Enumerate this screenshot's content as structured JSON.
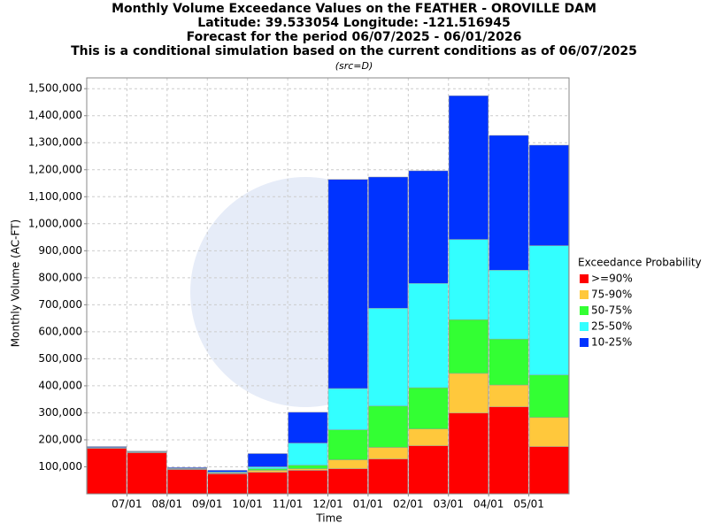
{
  "chart_data": {
    "type": "stacked_bar",
    "title": [
      "Monthly Volume Exceedance Values on the FEATHER - OROVILLE DAM",
      "Latitude: 39.533054 Longitude: -121.516945",
      "Forecast for the period 06/07/2025 - 06/01/2026",
      "This is a conditional simulation based on the current conditions as of 06/07/2025"
    ],
    "subtitle": "(src=D)",
    "xlabel": "Time",
    "ylabel": "Monthly Volume (AC-FT)",
    "xticks": [
      "07/01",
      "08/01",
      "09/01",
      "10/01",
      "11/01",
      "12/01",
      "01/01",
      "02/01",
      "03/01",
      "04/01",
      "05/01"
    ],
    "ylim": [
      0,
      1540000
    ],
    "yticks": [
      {
        "value": 100000,
        "label": "100,000"
      },
      {
        "value": 200000,
        "label": "200,000"
      },
      {
        "value": 300000,
        "label": "300,000"
      },
      {
        "value": 400000,
        "label": "400,000"
      },
      {
        "value": 500000,
        "label": "500,000"
      },
      {
        "value": 600000,
        "label": "600,000"
      },
      {
        "value": 700000,
        "label": "700,000"
      },
      {
        "value": 800000,
        "label": "800,000"
      },
      {
        "value": 900000,
        "label": "900,000"
      },
      {
        "value": 1000000,
        "label": "1,000,000"
      },
      {
        "value": 1100000,
        "label": "1,100,000"
      },
      {
        "value": 1200000,
        "label": "1,200,000"
      },
      {
        "value": 1300000,
        "label": "1,300,000"
      },
      {
        "value": 1400000,
        "label": "1,400,000"
      },
      {
        "value": 1500000,
        "label": "1,500,000"
      }
    ],
    "grid": true,
    "legend_title": "Exceedance Probability",
    "legend_position": "right",
    "series": [
      {
        "name": ">=90%",
        "color": "#ff0000",
        "values": [
          168000,
          152000,
          90000,
          74000,
          80000,
          87000,
          93000,
          129000,
          178000,
          299000,
          322000,
          175000
        ]
      },
      {
        "name": "75-90%",
        "color": "#ffc83c",
        "values": [
          1000,
          1000,
          1000,
          2000,
          7000,
          6000,
          33000,
          43000,
          62000,
          147000,
          81000,
          108000
        ]
      },
      {
        "name": "50-75%",
        "color": "#33ff33",
        "values": [
          1000,
          1000,
          1000,
          2000,
          6000,
          13000,
          111000,
          153000,
          153000,
          199000,
          170000,
          157000
        ]
      },
      {
        "name": "25-50%",
        "color": "#33ffff",
        "values": [
          2000,
          2000,
          2000,
          3000,
          7000,
          82000,
          153000,
          362000,
          386000,
          297000,
          255000,
          479000
        ]
      },
      {
        "name": "10-25%",
        "color": "#0033ff",
        "values": [
          3000,
          2000,
          3000,
          6000,
          49000,
          114000,
          774000,
          486000,
          417000,
          532000,
          499000,
          372000
        ]
      }
    ]
  }
}
